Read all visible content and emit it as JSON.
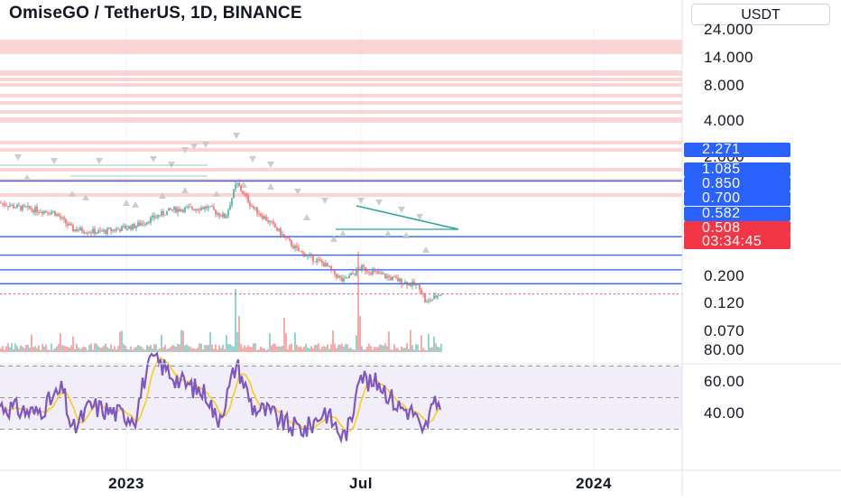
{
  "header": {
    "title": "OmiseGO / TetherUS, 1D, BINANCE",
    "currency": "USDT"
  },
  "colors": {
    "up": "#26a69a",
    "down": "#ef5350",
    "level_line": "#2962ff",
    "zone": "#f7b2b2",
    "rsi": "#7e57c2",
    "rsi_ma": "#f5d12e",
    "rsi_band": "#ede7f6",
    "marker": "#c8c8c8"
  },
  "chart_data": {
    "type": "candlestick",
    "title": "OmiseGO / TetherUS, 1D, BINANCE",
    "price_axis": {
      "scale": "log",
      "tick_labels": [
        "24.000",
        "14.000",
        "8.000",
        "4.000",
        "2.000",
        "0.200",
        "0.120",
        "0.070"
      ]
    },
    "price_badges": [
      {
        "label": "2.271",
        "color": "blue"
      },
      {
        "label": "1.085",
        "color": "blue"
      },
      {
        "label": "0.850",
        "color": "blue"
      },
      {
        "label": "0.700",
        "color": "blue"
      },
      {
        "label": "0.582",
        "color": "blue"
      },
      {
        "label": "0.508",
        "color": "red"
      },
      {
        "label": "03:34:45",
        "color": "red"
      }
    ],
    "horizontal_levels": [
      2.271,
      1.085,
      0.85,
      0.7,
      0.582
    ],
    "last_price": 0.508,
    "countdown": "03:34:45",
    "time_axis": {
      "tick_labels": [
        "2023",
        "Jul",
        "2024"
      ]
    },
    "rsi_panel": {
      "tick_labels": [
        "80.00",
        "60.00",
        "40.00"
      ],
      "band": [
        30,
        70
      ]
    }
  }
}
